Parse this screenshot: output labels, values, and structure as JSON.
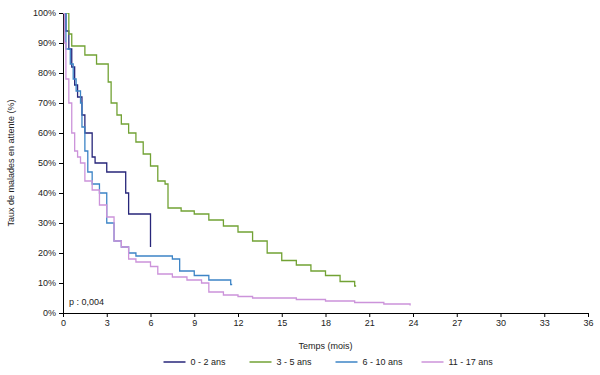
{
  "chart_data": {
    "type": "line",
    "x_label": "Temps (mois)",
    "y_label": "Taux de malades en attente (%)",
    "annotations": [
      "p : 0,004"
    ],
    "legend": "bottom",
    "xlim": [
      0,
      36
    ],
    "xticks": [
      0,
      3,
      6,
      9,
      12,
      15,
      18,
      21,
      24,
      27,
      30,
      33,
      36
    ],
    "ylim": [
      0,
      100
    ],
    "yticks": [
      {
        "value": 0,
        "label": "0%"
      },
      {
        "value": 10,
        "label": "10%"
      },
      {
        "value": 20,
        "label": "20%"
      },
      {
        "value": 30,
        "label": "30%"
      },
      {
        "value": 40,
        "label": "40%"
      },
      {
        "value": 50,
        "label": "50%"
      },
      {
        "value": 60,
        "label": "60%"
      },
      {
        "value": 70,
        "label": "70%"
      },
      {
        "value": 80,
        "label": "80%"
      },
      {
        "value": 90,
        "label": "90%"
      },
      {
        "value": 100,
        "label": "100%"
      }
    ],
    "series": [
      {
        "name": "0 - 2 ans",
        "color": "#27267a",
        "x": [
          0,
          0.2,
          0.4,
          0.6,
          0.8,
          1.0,
          1.3,
          1.5,
          2.0,
          2.2,
          3.0,
          4.3,
          4.5,
          6.0
        ],
        "values": [
          100,
          94,
          88,
          82,
          76,
          72,
          66,
          60,
          52,
          50,
          47,
          40,
          33,
          22
        ]
      },
      {
        "name": "3 - 5 ans",
        "color": "#72a234",
        "x": [
          0,
          0.4,
          0.6,
          1.5,
          2.3,
          3.1,
          3.3,
          3.7,
          4.0,
          4.5,
          5.0,
          5.5,
          6.0,
          6.5,
          7.0,
          7.2,
          8.1,
          9,
          10,
          11,
          12,
          13,
          14,
          15,
          16,
          17,
          18,
          19,
          20,
          20.1
        ],
        "values": [
          100,
          93,
          89,
          86,
          83,
          77,
          70,
          66,
          63,
          60,
          57,
          53,
          49,
          44,
          43,
          35,
          34,
          33,
          31,
          29,
          27,
          24,
          20,
          17.5,
          16,
          14,
          12.5,
          10.5,
          9,
          9
        ]
      },
      {
        "name": "6 - 10 ans",
        "color": "#3d84c6",
        "x": [
          0,
          0.2,
          0.5,
          0.7,
          0.9,
          1.2,
          1.3,
          1.5,
          1.7,
          2.0,
          2.5,
          3.0,
          3.5,
          4.0,
          4.5,
          5.0,
          7.5,
          8.0,
          9.0,
          10.0,
          11.5,
          11.6
        ],
        "values": [
          100,
          88,
          83,
          78,
          74,
          70,
          62,
          54,
          47,
          43,
          40,
          30,
          24,
          22,
          20,
          19,
          18,
          14,
          12.5,
          11,
          9.5,
          9.5
        ]
      },
      {
        "name": "11 - 17 ans",
        "color": "#cc93da",
        "x": [
          0,
          0.1,
          0.2,
          0.4,
          0.6,
          0.8,
          1.0,
          1.2,
          1.5,
          2.0,
          2.5,
          3.0,
          3.5,
          4.0,
          4.5,
          5,
          6,
          6.5,
          7.5,
          8.5,
          9.5,
          10,
          11,
          12,
          13,
          16,
          18,
          20,
          22,
          23.8
        ],
        "values": [
          100,
          90,
          78,
          70,
          60,
          54,
          52,
          50,
          44,
          41,
          36,
          32,
          24,
          22,
          18,
          17,
          15.5,
          13,
          12,
          11,
          10,
          7,
          6,
          5.5,
          5,
          4.5,
          4,
          3.5,
          3,
          2.5
        ]
      }
    ]
  }
}
